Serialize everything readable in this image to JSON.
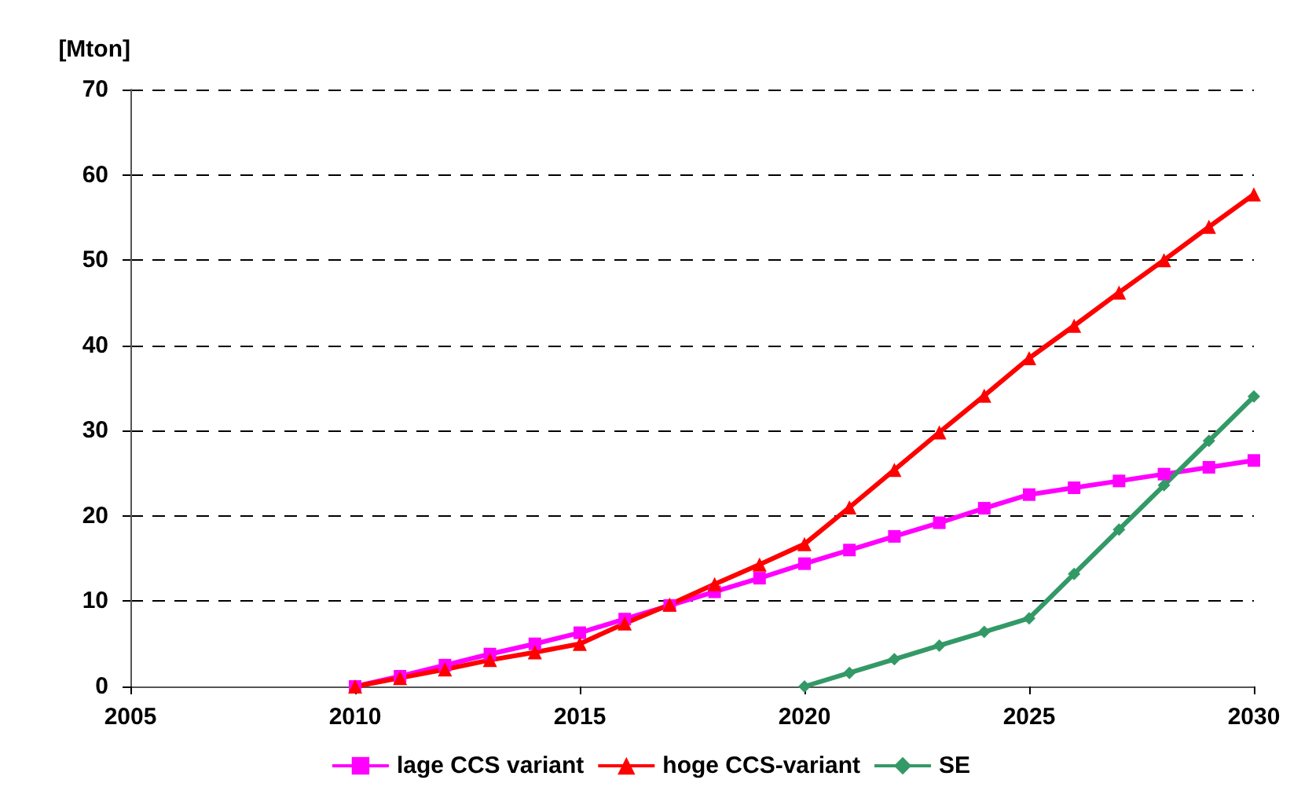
{
  "chart_data": {
    "type": "line",
    "ylabel": "[Mton]",
    "xlim": [
      2005,
      2030
    ],
    "xticks": [
      2005,
      2010,
      2015,
      2020,
      2025,
      2030
    ],
    "ylim": [
      0,
      70
    ],
    "yticks": [
      0,
      10,
      20,
      30,
      40,
      50,
      60,
      70
    ],
    "grid": "y",
    "legend": "bottom",
    "series": [
      {
        "name": "lage CCS variant",
        "color": "#ff00ff",
        "marker": "square",
        "x": [
          2010,
          2011,
          2012,
          2013,
          2014,
          2015,
          2016,
          2017,
          2018,
          2019,
          2020,
          2021,
          2022,
          2023,
          2024,
          2025,
          2026,
          2027,
          2028,
          2029,
          2030
        ],
        "values": [
          0,
          1.2,
          2.5,
          3.8,
          5.0,
          6.3,
          7.9,
          9.5,
          11.1,
          12.7,
          14.4,
          16.0,
          17.6,
          19.2,
          20.9,
          22.5,
          23.3,
          24.1,
          24.9,
          25.7,
          26.5
        ]
      },
      {
        "name": "hoge CCS-variant",
        "color": "#ff0000",
        "marker": "triangle",
        "x": [
          2010,
          2011,
          2012,
          2013,
          2014,
          2015,
          2016,
          2017,
          2018,
          2019,
          2020,
          2021,
          2022,
          2023,
          2024,
          2025,
          2026,
          2027,
          2028,
          2029,
          2030
        ],
        "values": [
          0,
          1.0,
          2.0,
          3.1,
          4.0,
          5.0,
          7.4,
          9.6,
          12.0,
          14.3,
          16.7,
          21.0,
          25.4,
          29.8,
          34.1,
          38.5,
          42.3,
          46.2,
          50.0,
          53.9,
          57.7
        ]
      },
      {
        "name": "SE",
        "color": "#339966",
        "marker": "diamond",
        "x": [
          2020,
          2021,
          2022,
          2023,
          2024,
          2025,
          2026,
          2027,
          2028,
          2029,
          2030
        ],
        "values": [
          0,
          1.6,
          3.2,
          4.8,
          6.4,
          8.0,
          13.2,
          18.4,
          23.6,
          28.8,
          34.0
        ]
      }
    ]
  }
}
